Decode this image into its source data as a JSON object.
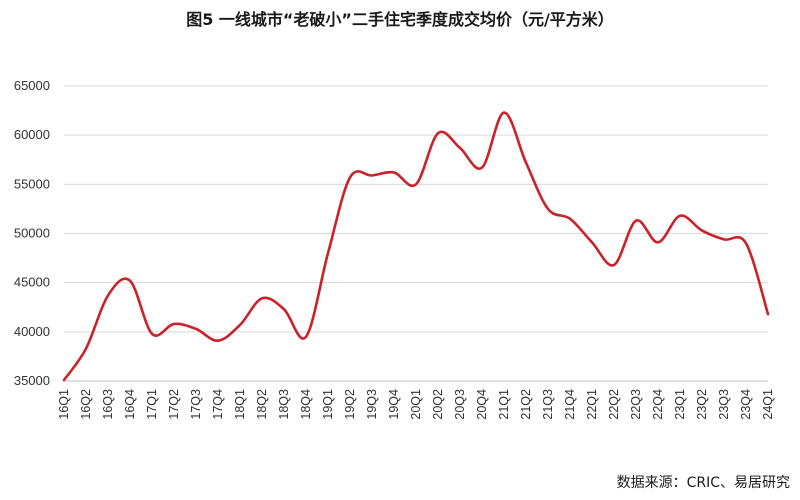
{
  "chart_data": {
    "type": "line",
    "title": "图5  一线城市“老破小”二手住宅季度成交均价（元/平方米）",
    "source": "数据来源：CRIC、易居研究",
    "categories": [
      "16Q1",
      "16Q2",
      "16Q3",
      "16Q4",
      "17Q1",
      "17Q2",
      "17Q3",
      "17Q4",
      "18Q1",
      "18Q2",
      "18Q3",
      "18Q4",
      "19Q1",
      "19Q2",
      "19Q3",
      "19Q4",
      "20Q1",
      "20Q2",
      "20Q3",
      "20Q4",
      "21Q1",
      "21Q2",
      "21Q3",
      "21Q4",
      "22Q1",
      "22Q2",
      "22Q3",
      "22Q4",
      "23Q1",
      "23Q2",
      "23Q3",
      "23Q4",
      "24Q1"
    ],
    "y_tick_labels": [
      "65000",
      "60000",
      "55000",
      "50000",
      "45000",
      "40000",
      "35000"
    ],
    "ylim": [
      35000,
      65000
    ],
    "grid": true,
    "series": [
      {
        "color": "#cc2128",
        "values": [
          35100,
          38300,
          43700,
          45200,
          39800,
          40800,
          40300,
          39100,
          40700,
          43400,
          42300,
          39500,
          48000,
          55700,
          55900,
          56200,
          55000,
          60200,
          58700,
          56700,
          62300,
          57200,
          52500,
          51500,
          49100,
          46800,
          51300,
          49100,
          51800,
          50300,
          49400,
          49000,
          41800
        ]
      }
    ]
  }
}
